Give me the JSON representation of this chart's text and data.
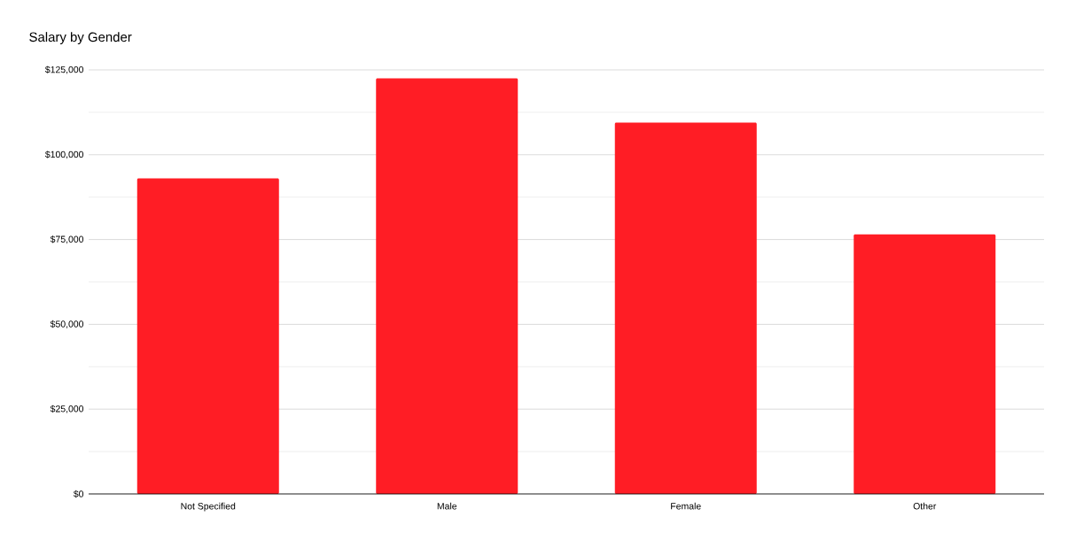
{
  "chart_data": {
    "type": "bar",
    "title": "Salary by Gender",
    "categories": [
      "Not Specified",
      "Male",
      "Female",
      "Other"
    ],
    "values": [
      93000,
      122500,
      109500,
      76500
    ],
    "color": "#ff1d25",
    "ylim": [
      0,
      125000
    ],
    "yticks": [
      {
        "value": 0,
        "label": "$0"
      },
      {
        "value": 25000,
        "label": "$25,000"
      },
      {
        "value": 50000,
        "label": "$50,000"
      },
      {
        "value": 75000,
        "label": "$75,000"
      },
      {
        "value": 100000,
        "label": "$100,000"
      },
      {
        "value": 125000,
        "label": "$125,000"
      }
    ],
    "grid": true
  }
}
